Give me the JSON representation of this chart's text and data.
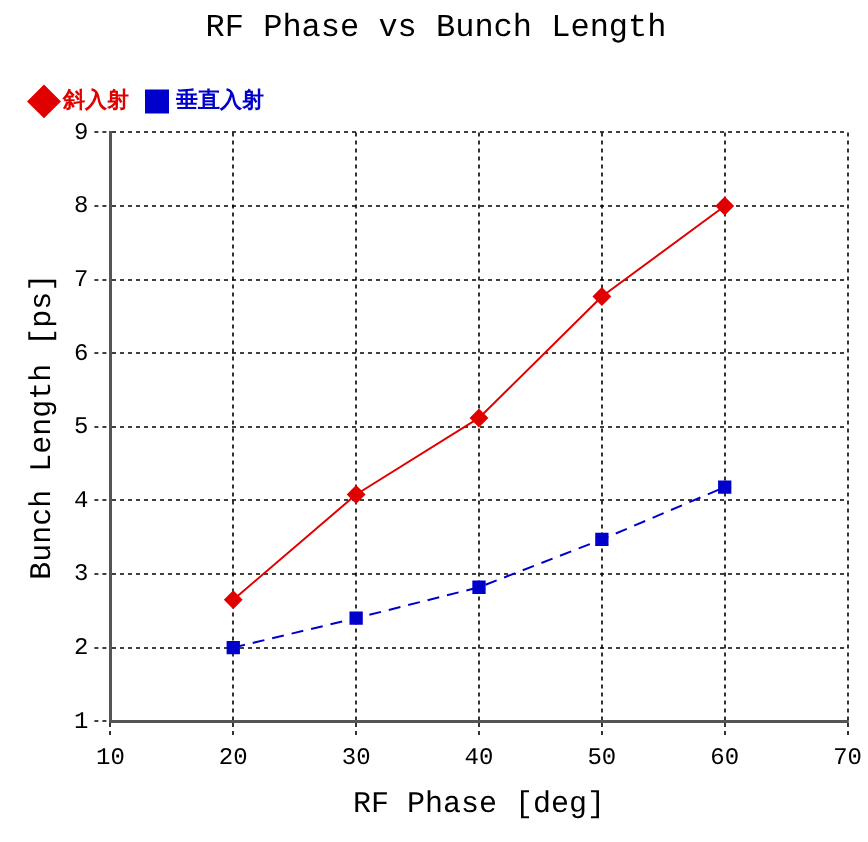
{
  "chart_data": {
    "type": "line",
    "title": "RF Phase vs Bunch Length",
    "xlabel": "RF Phase [deg]",
    "ylabel": "Bunch Length [ps]",
    "x": [
      20,
      30,
      40,
      50,
      60
    ],
    "series": [
      {
        "name": "斜入射",
        "color": "#e00000",
        "values": [
          2.65,
          4.08,
          5.12,
          6.77,
          8.0
        ],
        "marker": "diamond",
        "line_style": "solid"
      },
      {
        "name": "垂直入射",
        "color": "#0000cc",
        "values": [
          2.0,
          2.4,
          2.82,
          3.47,
          4.18
        ],
        "marker": "square",
        "line_style": "dashed"
      }
    ],
    "xlim": [
      10,
      70
    ],
    "xticks": [
      10,
      20,
      30,
      40,
      50,
      60,
      70
    ],
    "ylim": [
      1,
      9
    ],
    "yticks": [
      1,
      2,
      3,
      4,
      5,
      6,
      7,
      8,
      9
    ],
    "grid": true,
    "legend": "top left"
  }
}
